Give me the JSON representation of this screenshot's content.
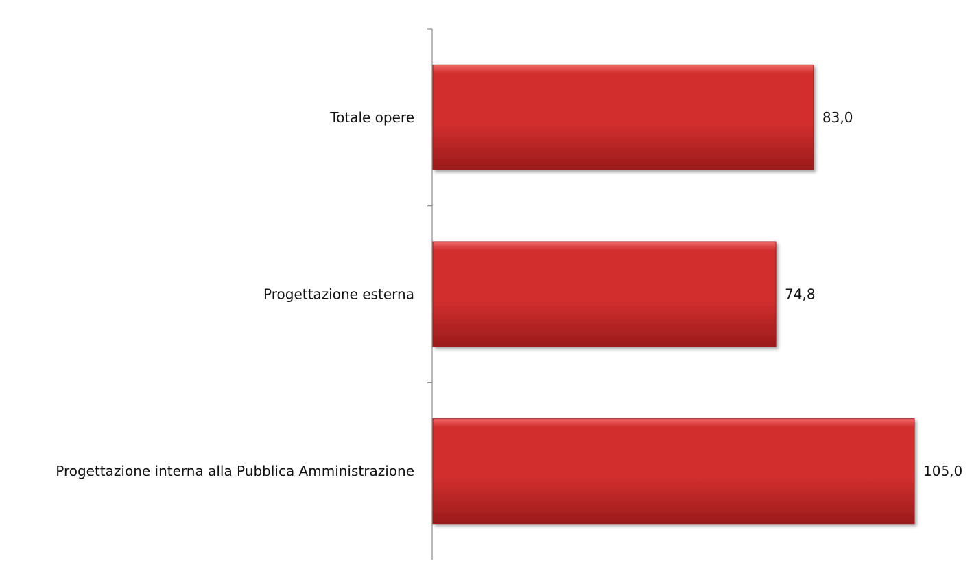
{
  "chart_data": {
    "type": "bar",
    "orientation": "horizontal",
    "categories": [
      "Totale opere",
      "Progettazione esterna",
      "Progettazione interna alla Pubblica Amministrazione"
    ],
    "values": [
      83.0,
      74.8,
      105.0
    ],
    "data_labels": [
      "83,0",
      "74,8",
      "105,0"
    ],
    "xlim": [
      0,
      105
    ],
    "grid": false,
    "legend": "none",
    "bar_color": "#d32f2f",
    "bar_color_dark": "#9b1b1b",
    "bar_color_light": "#f06a6a"
  }
}
